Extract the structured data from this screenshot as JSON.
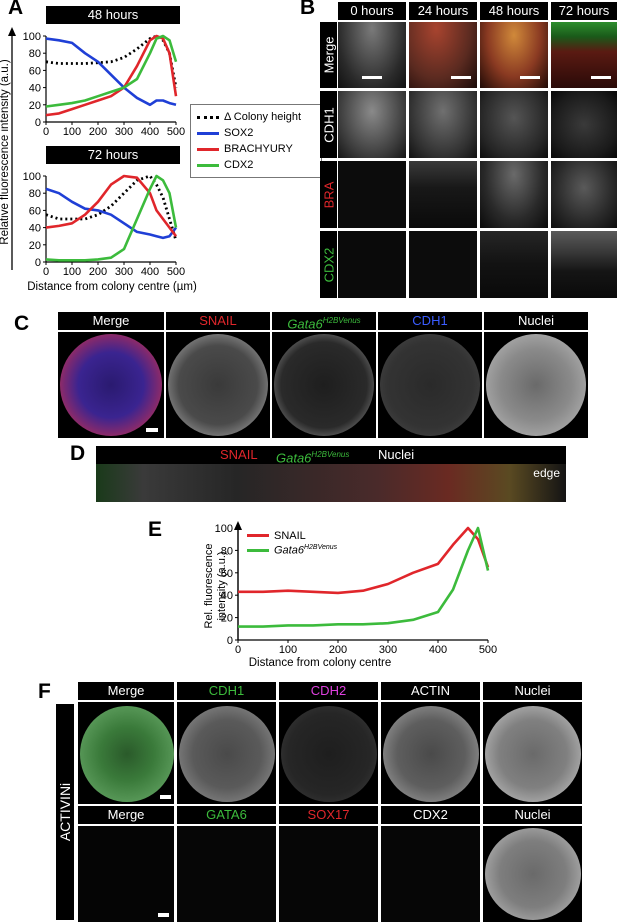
{
  "panels": {
    "A": "A",
    "B": "B",
    "C": "C",
    "D": "D",
    "E": "E",
    "F": "F"
  },
  "colors": {
    "black": "#000000",
    "sox2": "#1f3fd6",
    "bra": "#e0262b",
    "cdx2": "#3cbb3c",
    "snail": "#e0262b",
    "gata6": "#3cbb3c"
  },
  "panelA": {
    "titles": [
      "48 hours",
      "72 hours"
    ],
    "ylabel": "Relative fluorescence intensity (a.u.)",
    "xlabel": "Distance from colony centre (µm)",
    "legend": [
      "Δ Colony height",
      "SOX2",
      "BRACHYURY",
      "CDX2"
    ]
  },
  "panelB": {
    "headers": [
      "0 hours",
      "24 hours",
      "48 hours",
      "72 hours"
    ],
    "rows": [
      "Merge",
      "CDH1",
      "BRA",
      "CDX2"
    ]
  },
  "panelC": {
    "headers": [
      "Merge",
      "SNAIL",
      "Gata6",
      "CDH1",
      "Nuclei"
    ],
    "gata6_sup": "H2BVenus"
  },
  "panelD": {
    "snail": "SNAIL",
    "gata6": "Gata6",
    "gata6_sup": "H2BVenus",
    "nuclei": "Nuclei",
    "edge": "edge"
  },
  "panelE": {
    "ylabel1": "Rel. fluorescence",
    "ylabel2": "intensity (a.u.)",
    "xlabel": "Distance from colony centre",
    "legend": [
      "SNAIL",
      "Gata6"
    ],
    "legend_sup": "H2BVenus"
  },
  "panelF": {
    "side": "ACTIVINi",
    "row1": [
      "Merge",
      "CDH1",
      "CDH2",
      "ACTIN",
      "Nuclei"
    ],
    "row2": [
      "Merge",
      "GATA6",
      "SOX17",
      "CDX2",
      "Nuclei"
    ]
  },
  "chart_data": [
    {
      "type": "line",
      "title": "48 hours",
      "xlabel": "Distance from colony centre (µm)",
      "ylabel": "Relative fluorescence intensity (a.u.)",
      "xlim": [
        0,
        500
      ],
      "ylim": [
        0,
        100
      ],
      "x": [
        0,
        50,
        100,
        150,
        200,
        250,
        300,
        350,
        400,
        425,
        450,
        475,
        500
      ],
      "series": [
        {
          "name": "Δ Colony height",
          "values": [
            70,
            68,
            68,
            68,
            69,
            70,
            75,
            85,
            97,
            100,
            95,
            80,
            40
          ]
        },
        {
          "name": "SOX2",
          "values": [
            97,
            95,
            92,
            80,
            70,
            55,
            40,
            28,
            20,
            25,
            25,
            22,
            20
          ]
        },
        {
          "name": "BRACHYURY",
          "values": [
            8,
            10,
            15,
            20,
            25,
            30,
            40,
            65,
            95,
            100,
            97,
            80,
            30
          ]
        },
        {
          "name": "CDX2",
          "values": [
            18,
            20,
            22,
            25,
            30,
            35,
            40,
            50,
            80,
            97,
            100,
            95,
            70
          ]
        }
      ]
    },
    {
      "type": "line",
      "title": "72 hours",
      "xlabel": "Distance from colony centre (µm)",
      "ylabel": "Relative fluorescence intensity (a.u.)",
      "xlim": [
        0,
        500
      ],
      "ylim": [
        0,
        100
      ],
      "x": [
        0,
        50,
        100,
        150,
        200,
        250,
        300,
        350,
        400,
        425,
        450,
        475,
        500
      ],
      "series": [
        {
          "name": "Δ Colony height",
          "values": [
            55,
            50,
            50,
            50,
            55,
            65,
            80,
            95,
            100,
            90,
            75,
            50,
            25
          ]
        },
        {
          "name": "SOX2",
          "values": [
            85,
            80,
            70,
            62,
            60,
            55,
            45,
            35,
            32,
            30,
            28,
            30,
            40
          ]
        },
        {
          "name": "BRACHYURY",
          "values": [
            40,
            42,
            45,
            55,
            70,
            90,
            100,
            98,
            80,
            60,
            50,
            40,
            30
          ]
        },
        {
          "name": "CDX2",
          "values": [
            3,
            2,
            2,
            2,
            3,
            5,
            15,
            50,
            85,
            100,
            95,
            80,
            40
          ]
        }
      ]
    },
    {
      "type": "line",
      "xlabel": "Distance from colony centre",
      "ylabel": "Rel. fluorescence intensity (a.u.)",
      "xlim": [
        0,
        500
      ],
      "ylim": [
        0,
        100
      ],
      "x": [
        0,
        50,
        100,
        150,
        200,
        250,
        300,
        350,
        400,
        430,
        460,
        480,
        500
      ],
      "series": [
        {
          "name": "SNAIL",
          "values": [
            43,
            43,
            44,
            43,
            42,
            44,
            50,
            60,
            68,
            85,
            100,
            90,
            65
          ]
        },
        {
          "name": "Gata6 H2BVenus",
          "values": [
            12,
            12,
            13,
            13,
            14,
            14,
            15,
            18,
            25,
            45,
            80,
            100,
            62
          ]
        }
      ]
    }
  ]
}
